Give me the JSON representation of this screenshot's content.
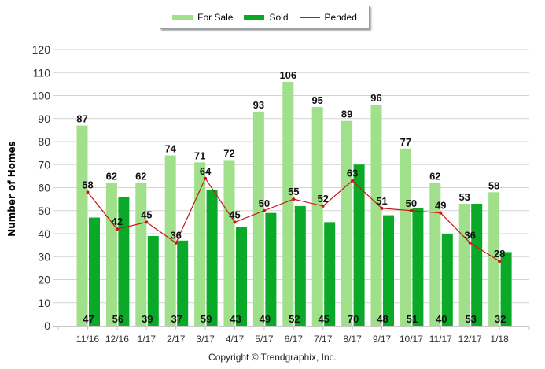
{
  "chart_data": {
    "type": "bar",
    "title": "",
    "xlabel": "",
    "ylabel": "Number of Homes",
    "ylim": [
      0,
      120
    ],
    "yticks": [
      "0",
      "10",
      "20",
      "30",
      "40",
      "50",
      "60",
      "70",
      "80",
      "90",
      "100",
      "110",
      "120"
    ],
    "grid": true,
    "legend_position": "top-center",
    "categories": [
      "11/16",
      "12/16",
      "1/17",
      "2/17",
      "3/17",
      "4/17",
      "5/17",
      "6/17",
      "7/17",
      "8/17",
      "9/17",
      "10/17",
      "11/17",
      "12/17",
      "1/18"
    ],
    "series": [
      {
        "name": "For Sale",
        "type": "bar",
        "color": "#a0e08a",
        "values": [
          87,
          62,
          62,
          74,
          71,
          72,
          93,
          106,
          95,
          89,
          96,
          77,
          62,
          53,
          58
        ]
      },
      {
        "name": "Sold",
        "type": "bar",
        "color": "#0aaa28",
        "values": [
          47,
          56,
          39,
          37,
          59,
          43,
          49,
          52,
          45,
          70,
          48,
          51,
          40,
          53,
          32
        ]
      },
      {
        "name": "Pended",
        "type": "line",
        "color": "#cc1414",
        "values": [
          58,
          42,
          45,
          36,
          64,
          45,
          50,
          55,
          52,
          63,
          51,
          50,
          49,
          36,
          28
        ]
      }
    ]
  },
  "legend": {
    "items": [
      {
        "label": "For Sale",
        "color": "#a0e08a",
        "kind": "box"
      },
      {
        "label": "Sold",
        "color": "#0aaa28",
        "kind": "box"
      },
      {
        "label": "Pended",
        "color": "#cc1414",
        "kind": "line"
      }
    ]
  },
  "footer": {
    "copyright": "Copyright © Trendgraphix, Inc."
  }
}
